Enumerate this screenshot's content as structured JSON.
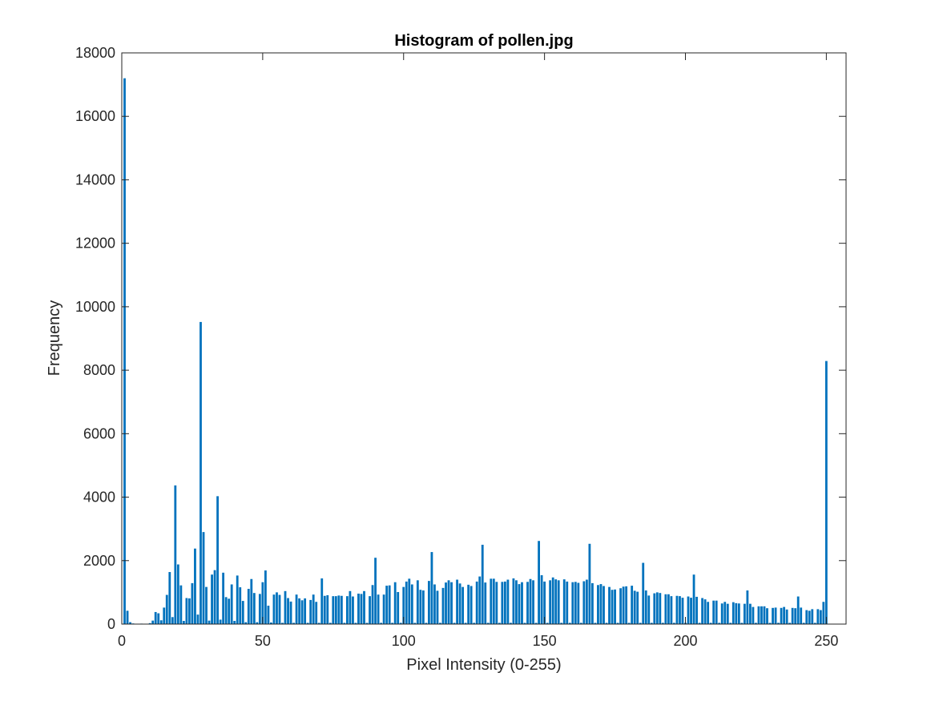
{
  "chart_data": {
    "type": "bar",
    "title": "Histogram of pollen.jpg",
    "xlabel": "Pixel Intensity (0-255)",
    "ylabel": "Frequency",
    "xlim": [
      0,
      257
    ],
    "ylim": [
      0,
      18000
    ],
    "x_ticks": [
      0,
      50,
      100,
      150,
      200,
      250
    ],
    "y_ticks": [
      0,
      2000,
      4000,
      6000,
      8000,
      10000,
      12000,
      14000,
      16000,
      18000
    ],
    "bar_color": "#0072BD",
    "grid": false,
    "x_start": 1,
    "values": [
      17200,
      420,
      60,
      20,
      10,
      10,
      15,
      10,
      10,
      30,
      110,
      380,
      340,
      120,
      520,
      920,
      1640,
      220,
      4370,
      1880,
      1220,
      100,
      820,
      810,
      1290,
      2380,
      300,
      9520,
      2900,
      1170,
      110,
      1560,
      1700,
      4030,
      140,
      1620,
      850,
      800,
      1250,
      100,
      1530,
      1160,
      730,
      60,
      1110,
      1420,
      980,
      60,
      950,
      1320,
      1690,
      580,
      50,
      930,
      1000,
      920,
      40,
      1040,
      820,
      710,
      40,
      930,
      810,
      750,
      810,
      40,
      760,
      930,
      700,
      40,
      1440,
      890,
      910,
      40,
      880,
      880,
      900,
      890,
      40,
      880,
      1040,
      870,
      40,
      960,
      950,
      1040,
      40,
      880,
      1230,
      2090,
      930,
      40,
      930,
      1210,
      1220,
      40,
      1320,
      1010,
      40,
      1170,
      1340,
      1430,
      1250,
      40,
      1380,
      1080,
      1060,
      40,
      1360,
      2270,
      1250,
      1050,
      40,
      1140,
      1310,
      1380,
      1320,
      40,
      1400,
      1280,
      1170,
      40,
      1240,
      1200,
      40,
      1340,
      1500,
      2500,
      1310,
      40,
      1430,
      1430,
      1330,
      40,
      1330,
      1340,
      1400,
      40,
      1440,
      1380,
      1260,
      1320,
      40,
      1330,
      1420,
      1380,
      40,
      2620,
      1540,
      1340,
      40,
      1380,
      1470,
      1410,
      1380,
      40,
      1410,
      1340,
      40,
      1320,
      1330,
      1300,
      40,
      1350,
      1400,
      2530,
      1290,
      40,
      1230,
      1260,
      1200,
      40,
      1170,
      1080,
      1090,
      40,
      1130,
      1180,
      1190,
      40,
      1210,
      1050,
      1020,
      40,
      1930,
      1060,
      900,
      40,
      970,
      1000,
      980,
      40,
      940,
      940,
      880,
      40,
      890,
      880,
      830,
      40,
      870,
      830,
      1560,
      860,
      40,
      820,
      780,
      700,
      40,
      740,
      740,
      40,
      650,
      700,
      640,
      40,
      690,
      660,
      650,
      40,
      640,
      1060,
      640,
      540,
      40,
      560,
      560,
      560,
      500,
      40,
      510,
      520,
      40,
      510,
      540,
      460,
      40,
      510,
      500,
      870,
      520,
      40,
      440,
      420,
      470,
      40,
      470,
      440,
      700,
      8290
    ]
  }
}
